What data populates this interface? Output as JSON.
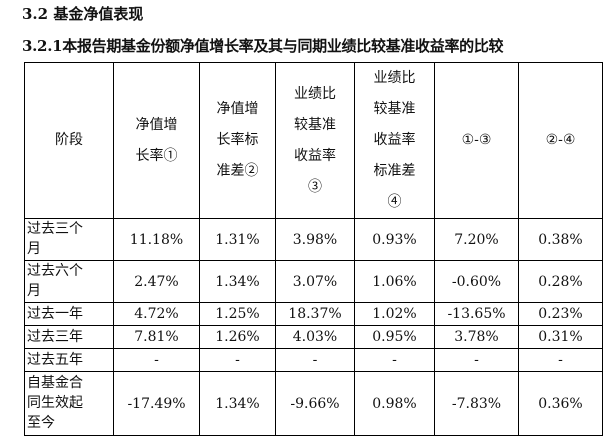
{
  "section": {
    "heading": "3.2 基金净值表现",
    "subheading": "3.2.1本报告期基金份额净值增长率及其与同期业绩比较基准收益率的比较"
  },
  "table": {
    "headers": [
      "阶段",
      "净值增长率①",
      "净值增长率标准差②",
      "业绩比较基准收益率③",
      "业绩比较基准收益率标准差④",
      "①-③",
      "②-④"
    ],
    "rows": [
      {
        "stage": "过去三个月",
        "values": [
          "11.18%",
          "1.31%",
          "3.98%",
          "0.93%",
          "7.20%",
          "0.38%"
        ]
      },
      {
        "stage": "过去六个月",
        "values": [
          "2.47%",
          "1.34%",
          "3.07%",
          "1.06%",
          "-0.60%",
          "0.28%"
        ]
      },
      {
        "stage": "过去一年",
        "values": [
          "4.72%",
          "1.25%",
          "18.37%",
          "1.02%",
          "-13.65%",
          "0.23%"
        ]
      },
      {
        "stage": "过去三年",
        "values": [
          "7.81%",
          "1.26%",
          "4.03%",
          "0.95%",
          "3.78%",
          "0.31%"
        ]
      },
      {
        "stage": "过去五年",
        "values": [
          "-",
          "-",
          "-",
          "-",
          "-",
          "-"
        ]
      },
      {
        "stage": "自基金合同生效起至今",
        "values": [
          "-17.49%",
          "1.34%",
          "-9.66%",
          "0.98%",
          "-7.83%",
          "0.36%"
        ]
      }
    ]
  }
}
